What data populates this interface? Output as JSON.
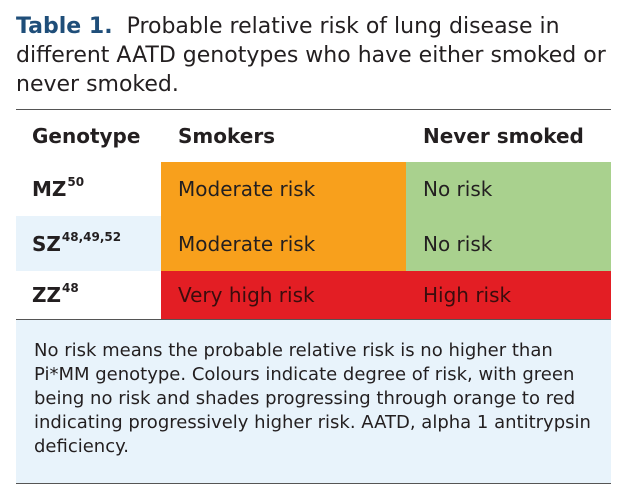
{
  "caption": {
    "label": "Table 1.",
    "text": "Probable relative risk of lung disease in different AATD genotypes who have either smoked or never smoked."
  },
  "table": {
    "headers": [
      "Genotype",
      "Smokers",
      "Never smoked"
    ],
    "rows": [
      {
        "genotype": "MZ",
        "refs": "50",
        "smokers": "Moderate risk",
        "never_smoked": "No risk",
        "row_bg": "#ffffff",
        "smokers_color": "#f8a01c",
        "never_smoked_color": "#a9d18e",
        "smokers_text_color": "#231f20",
        "never_smoked_text_color": "#231f20"
      },
      {
        "genotype": "SZ",
        "refs": "48,49,52",
        "smokers": "Moderate risk",
        "never_smoked": "No risk",
        "row_bg": "#e8f3fb",
        "smokers_color": "#f8a01c",
        "never_smoked_color": "#a9d18e",
        "smokers_text_color": "#231f20",
        "never_smoked_text_color": "#231f20"
      },
      {
        "genotype": "ZZ",
        "refs": "48",
        "smokers": "Very high risk",
        "never_smoked": "High risk",
        "row_bg": "#ffffff",
        "smokers_color": "#e31e24",
        "never_smoked_color": "#e31e24",
        "smokers_text_color": "#3a0d0d",
        "never_smoked_text_color": "#3a0d0d"
      }
    ]
  },
  "footnote": "No risk means the probable relative risk is no higher than Pi*MM genotype. Colours indicate degree of risk, with green being no risk and shades progressing through orange to red indicating progressively higher risk. AATD, alpha 1 antitrypsin deficiency.",
  "colors": {
    "caption_label": "#1f4e79",
    "shaded_background": "#e8f3fb",
    "rule": "#555555"
  }
}
